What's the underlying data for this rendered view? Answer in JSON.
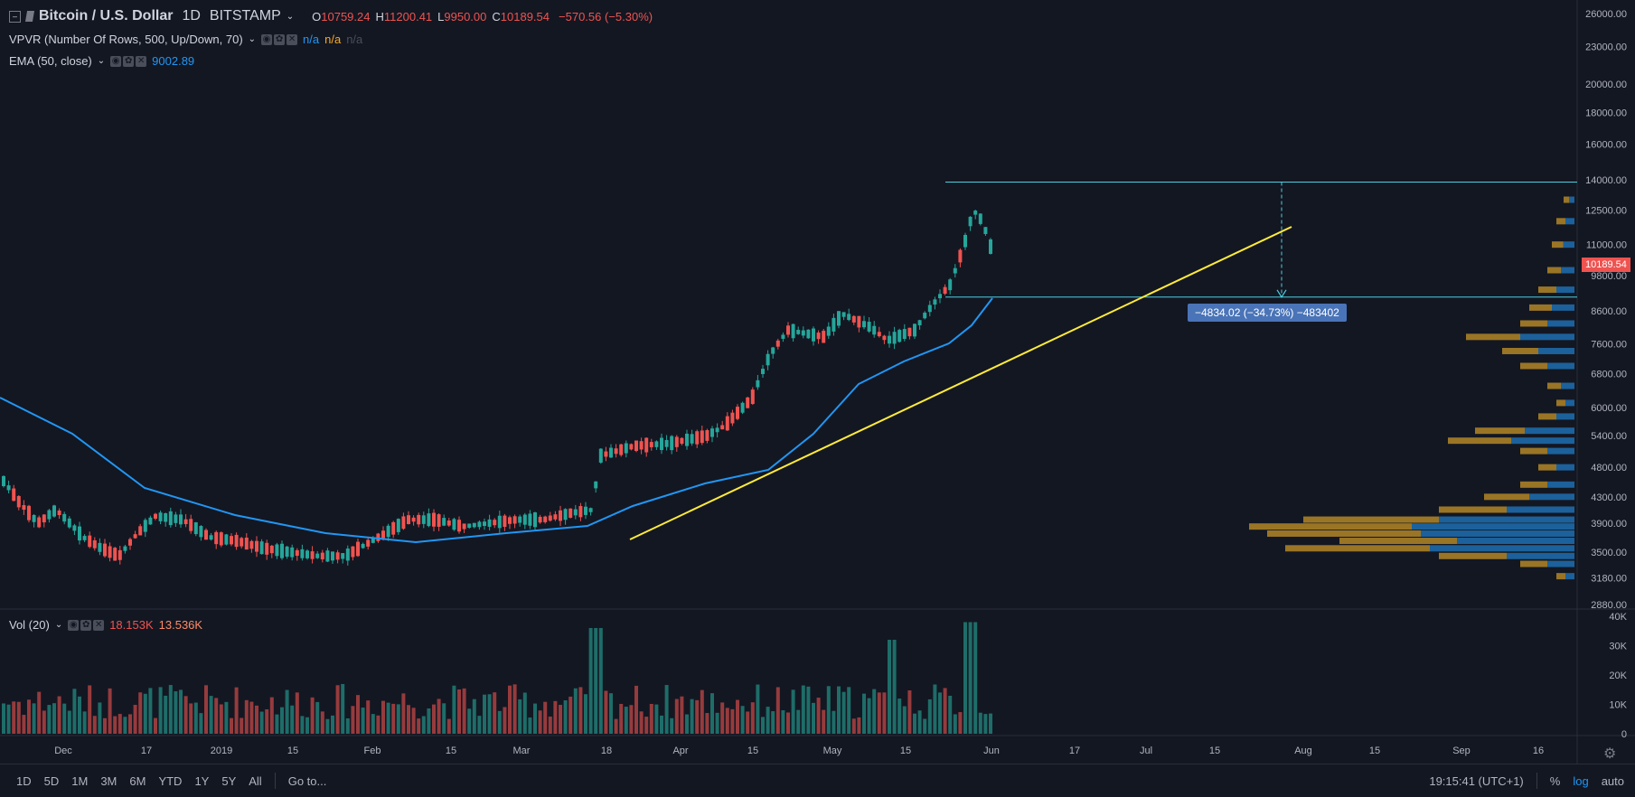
{
  "header": {
    "symbol": "Bitcoin / U.S. Dollar",
    "interval": "1D",
    "exchange": "BITSTAMP",
    "o_label": "O",
    "o_value": "10759.24",
    "h_label": "H",
    "h_value": "11200.41",
    "l_label": "L",
    "l_value": "9950.00",
    "c_label": "C",
    "c_value": "10189.54",
    "change": "−570.56 (−5.30%)"
  },
  "indicators": [
    {
      "name": "VPVR (Number Of Rows, 500, Up/Down, 70)",
      "values": [
        "n/a",
        "n/a",
        "n/a"
      ]
    },
    {
      "name": "EMA (50, close)",
      "values": [
        "9002.89"
      ]
    }
  ],
  "volume_legend": {
    "name": "Vol (20)",
    "v1": "18.153K",
    "v2": "13.536K"
  },
  "price_axis": [
    "26000.00",
    "23000.00",
    "20000.00",
    "18000.00",
    "16000.00",
    "14000.00",
    "12500.00",
    "11000.00",
    "9800.00",
    "8600.00",
    "7600.00",
    "6800.00",
    "6000.00",
    "5400.00",
    "4800.00",
    "4300.00",
    "3900.00",
    "3500.00",
    "3180.00",
    "2880.00"
  ],
  "last_price_label": "10189.54",
  "volume_axis": [
    "40K",
    "30K",
    "20K",
    "10K",
    "0"
  ],
  "time_axis": [
    "Dec",
    "17",
    "2019",
    "15",
    "Feb",
    "15",
    "Mar",
    "18",
    "Apr",
    "15",
    "May",
    "15",
    "Jun",
    "17",
    "Jul",
    "15",
    "Aug",
    "15",
    "Sep",
    "16"
  ],
  "measure_label": "−4834.02 (−34.73%) −483402",
  "bottom_bar": {
    "ranges": [
      "1D",
      "5D",
      "1M",
      "3M",
      "6M",
      "YTD",
      "1Y",
      "5Y",
      "All"
    ],
    "goto": "Go to...",
    "time": "19:15:41 (UTC+1)",
    "percent": "%",
    "log": "log",
    "auto": "auto"
  },
  "colors": {
    "up": "#26a69a",
    "down": "#ef5350",
    "ema": "#2196f3",
    "trendline": "#ffeb3b",
    "level": "#4dd0e1",
    "vp_up": "#1e6fb0",
    "vp_down": "#c89628"
  },
  "chart_data": {
    "type": "candlestick",
    "y_scale": "log",
    "levels": [
      13880,
      9046
    ],
    "ema_start": 6000,
    "ema_end": 9002.89
  }
}
